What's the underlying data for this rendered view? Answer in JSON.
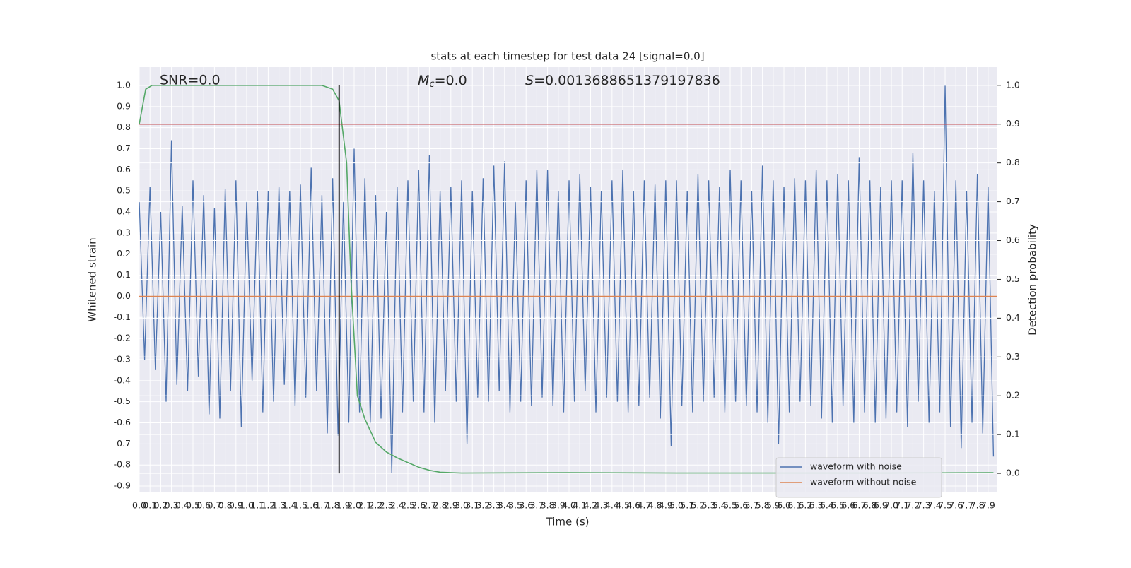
{
  "chart_data": {
    "type": "line",
    "title": "stats at each timestep for test data 24 [signal=0.0]",
    "x_label": "Time (s)",
    "y_label": "Whitened strain",
    "y2_label": "Detection probability",
    "annotations": {
      "snr": "SNR=0.0",
      "mc": {
        "symbol": "M",
        "subscript": "c",
        "text": "=0.0"
      },
      "s": {
        "symbol": "S",
        "text": "=0.0013688651379197836"
      }
    },
    "grid": true,
    "legend": "lower right",
    "xlim": [
      0,
      7.98
    ],
    "ylim": [
      -0.93,
      1.087
    ],
    "y2lim": [
      -0.049,
      1.047
    ],
    "xticks": [
      {
        "value": 0,
        "label": "0.0"
      },
      0.1,
      0.2,
      0.3,
      0.4,
      0.5,
      0.6,
      0.7,
      0.8,
      0.9,
      {
        "value": 1,
        "label": "1.0"
      },
      1.1,
      1.2,
      1.3,
      1.4,
      1.5,
      1.6,
      1.7,
      1.8,
      1.9,
      {
        "value": 2,
        "label": "2.0"
      },
      2.1,
      2.2,
      2.3,
      2.4,
      2.5,
      2.6,
      2.7,
      2.8,
      2.9,
      {
        "value": 3,
        "label": "3.0"
      },
      3.1,
      3.2,
      3.3,
      3.4,
      3.5,
      3.6,
      3.7,
      3.8,
      3.9,
      {
        "value": 4,
        "label": "4.0"
      },
      4.1,
      4.2,
      4.3,
      4.4,
      4.5,
      4.6,
      4.7,
      4.8,
      4.9,
      {
        "value": 5,
        "label": "5.0"
      },
      5.1,
      5.2,
      5.3,
      5.4,
      5.5,
      5.6,
      5.7,
      5.8,
      5.9,
      {
        "value": 6,
        "label": "6.0"
      },
      6.1,
      6.2,
      6.3,
      6.4,
      6.5,
      6.6,
      6.7,
      6.8,
      6.9,
      {
        "value": 7,
        "label": "7.0"
      },
      7.1,
      7.2,
      7.3,
      7.4,
      7.5,
      7.6,
      7.7,
      7.8,
      7.9
    ],
    "yticks": [
      -0.9,
      -0.8,
      -0.7,
      -0.6,
      -0.5,
      -0.4,
      -0.3,
      -0.2,
      -0.1,
      {
        "value": 0,
        "label": "0.0"
      },
      0.1,
      0.2,
      0.3,
      0.4,
      0.5,
      0.6,
      0.7,
      0.8,
      0.9,
      {
        "value": 1,
        "label": "1.0"
      }
    ],
    "y2ticks": [
      {
        "value": 0,
        "label": "0.0"
      },
      0.1,
      0.2,
      0.3,
      0.4,
      0.5,
      0.6,
      0.7,
      0.8,
      0.9,
      {
        "value": 1,
        "label": "1.0"
      }
    ],
    "threshold": {
      "value": 0.9,
      "axis": "y2",
      "color": "#c44e52"
    },
    "marker_line": {
      "x": 1.86,
      "color": "#000000",
      "axis": "y2",
      "from": 0,
      "to": 1
    },
    "series": [
      {
        "name": "waveform with noise",
        "color": "#4c72b0",
        "x": [
          0,
          0.05,
          0.1,
          0.15,
          0.2,
          0.25,
          0.3,
          0.35,
          0.4,
          0.45,
          0.5,
          0.55,
          0.6,
          0.65,
          0.7,
          0.75,
          0.8,
          0.85,
          0.9,
          0.95,
          1,
          1.05,
          1.1,
          1.15,
          1.2,
          1.25,
          1.3,
          1.35,
          1.4,
          1.45,
          1.5,
          1.55,
          1.6,
          1.65,
          1.7,
          1.75,
          1.8,
          1.85,
          1.9,
          1.95,
          2,
          2.05,
          2.1,
          2.15,
          2.2,
          2.25,
          2.3,
          2.35,
          2.4,
          2.45,
          2.5,
          2.55,
          2.6,
          2.65,
          2.7,
          2.75,
          2.8,
          2.85,
          2.9,
          2.95,
          3,
          3.05,
          3.1,
          3.15,
          3.2,
          3.25,
          3.3,
          3.35,
          3.4,
          3.45,
          3.5,
          3.55,
          3.6,
          3.65,
          3.7,
          3.75,
          3.8,
          3.85,
          3.9,
          3.95,
          4,
          4.05,
          4.1,
          4.15,
          4.2,
          4.25,
          4.3,
          4.35,
          4.4,
          4.45,
          4.5,
          4.55,
          4.6,
          4.65,
          4.7,
          4.75,
          4.8,
          4.85,
          4.9,
          4.95,
          5,
          5.05,
          5.1,
          5.15,
          5.2,
          5.25,
          5.3,
          5.35,
          5.4,
          5.45,
          5.5,
          5.55,
          5.6,
          5.65,
          5.7,
          5.75,
          5.8,
          5.85,
          5.9,
          5.95,
          6,
          6.05,
          6.1,
          6.15,
          6.2,
          6.25,
          6.3,
          6.35,
          6.4,
          6.45,
          6.5,
          6.55,
          6.6,
          6.65,
          6.7,
          6.75,
          6.8,
          6.85,
          6.9,
          6.95,
          7,
          7.05,
          7.1,
          7.15,
          7.2,
          7.25,
          7.3,
          7.35,
          7.4,
          7.45,
          7.5,
          7.55,
          7.6,
          7.65,
          7.7,
          7.75,
          7.8,
          7.85,
          7.9,
          7.95
        ],
        "values": [
          0.45,
          -0.3,
          0.52,
          -0.35,
          0.4,
          -0.5,
          0.74,
          -0.42,
          0.43,
          -0.45,
          0.55,
          -0.38,
          0.48,
          -0.56,
          0.42,
          -0.58,
          0.51,
          -0.45,
          0.55,
          -0.62,
          0.45,
          -0.4,
          0.5,
          -0.55,
          0.5,
          -0.5,
          0.52,
          -0.42,
          0.5,
          -0.52,
          0.53,
          -0.48,
          0.61,
          -0.45,
          0.48,
          -0.65,
          0.56,
          -0.66,
          0.45,
          -0.6,
          0.7,
          -0.55,
          0.56,
          -0.6,
          0.48,
          -0.58,
          0.4,
          -0.84,
          0.52,
          -0.55,
          0.55,
          -0.5,
          0.6,
          -0.55,
          0.67,
          -0.6,
          0.5,
          -0.45,
          0.52,
          -0.5,
          0.55,
          -0.7,
          0.5,
          -0.48,
          0.56,
          -0.5,
          0.62,
          -0.45,
          0.64,
          -0.55,
          0.45,
          -0.5,
          0.55,
          -0.52,
          0.6,
          -0.48,
          0.6,
          -0.52,
          0.5,
          -0.55,
          0.55,
          -0.5,
          0.58,
          -0.45,
          0.52,
          -0.55,
          0.5,
          -0.48,
          0.55,
          -0.5,
          0.6,
          -0.55,
          0.5,
          -0.52,
          0.55,
          -0.48,
          0.53,
          -0.58,
          0.55,
          -0.71,
          0.55,
          -0.52,
          0.5,
          -0.55,
          0.58,
          -0.5,
          0.55,
          -0.48,
          0.52,
          -0.55,
          0.6,
          -0.5,
          0.55,
          -0.52,
          0.5,
          -0.55,
          0.62,
          -0.6,
          0.55,
          -0.7,
          0.52,
          -0.55,
          0.56,
          -0.5,
          0.55,
          -0.52,
          0.6,
          -0.58,
          0.55,
          -0.6,
          0.58,
          -0.52,
          0.55,
          -0.6,
          0.66,
          -0.55,
          0.55,
          -0.6,
          0.52,
          -0.58,
          0.55,
          -0.55,
          0.55,
          -0.62,
          0.68,
          -0.5,
          0.55,
          -0.6,
          0.5,
          -0.55,
          1.0,
          -0.62,
          0.55,
          -0.72,
          0.5,
          -0.6,
          0.58,
          -0.65,
          0.52,
          -0.76
        ]
      },
      {
        "name": "waveform without noise",
        "color": "#dd8452",
        "x": [
          0,
          7.98
        ],
        "values": [
          0,
          0
        ]
      },
      {
        "color": "#55a868",
        "axis": "y2",
        "x": [
          0,
          0.06,
          0.12,
          0.5,
          1.0,
          1.5,
          1.7,
          1.8,
          1.86,
          1.93,
          1.97,
          2.03,
          2.1,
          2.2,
          2.3,
          2.4,
          2.5,
          2.6,
          2.7,
          2.8,
          3.0,
          4.0,
          5.0,
          6.0,
          7.0,
          7.95
        ],
        "values": [
          0.9,
          0.99,
          1.0,
          1.0,
          1.0,
          1.0,
          1.0,
          0.99,
          0.96,
          0.8,
          0.5,
          0.2,
          0.14,
          0.08,
          0.055,
          0.04,
          0.028,
          0.016,
          0.008,
          0.003,
          0.001,
          0.002,
          0.001,
          0.001,
          0.001,
          0.002
        ]
      }
    ]
  }
}
